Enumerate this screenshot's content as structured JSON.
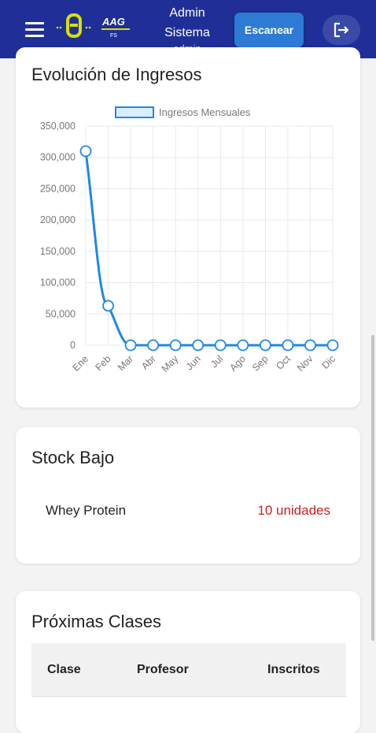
{
  "header": {
    "menu_icon": "hamburger-menu-icon",
    "logo_icon": "brand-logo-icon",
    "logo_text": "AAG",
    "logo_subtext": "FS",
    "user_name_line1": "Admin",
    "user_name_line2": "Sistema",
    "user_role": "admin",
    "scan_label": "Escanear",
    "logout_icon": "logout-icon",
    "bg_color": "#1f2f97",
    "scan_color": "#2e7bd6"
  },
  "revenue_card": {
    "title": "Evolución de Ingresos"
  },
  "chart_data": {
    "type": "line",
    "title": "",
    "xlabel": "",
    "ylabel": "",
    "legend": "top",
    "categories": [
      "Ene",
      "Feb",
      "Mar",
      "Abr",
      "May",
      "Jun",
      "Jul",
      "Ago",
      "Sep",
      "Oct",
      "Nov",
      "Dic"
    ],
    "series": [
      {
        "name": "Ingresos Mensuales",
        "color": "#1e88e5",
        "values": [
          310000,
          63000,
          0,
          0,
          0,
          0,
          0,
          0,
          0,
          0,
          0,
          0
        ]
      }
    ],
    "ylim": [
      0,
      350000
    ],
    "yticks": [
      "350,000",
      "300,000",
      "250,000",
      "200,000",
      "150,000",
      "100,000",
      "50,000",
      "0"
    ],
    "grid": true
  },
  "stock_card": {
    "title": "Stock Bajo",
    "items": [
      {
        "name": "Whey Protein",
        "quantity": "10 unidades"
      }
    ],
    "alert_color": "#cc1f1f"
  },
  "classes_card": {
    "title": "Próximas Clases",
    "columns": [
      "Clase",
      "Profesor",
      "Inscritos"
    ]
  }
}
